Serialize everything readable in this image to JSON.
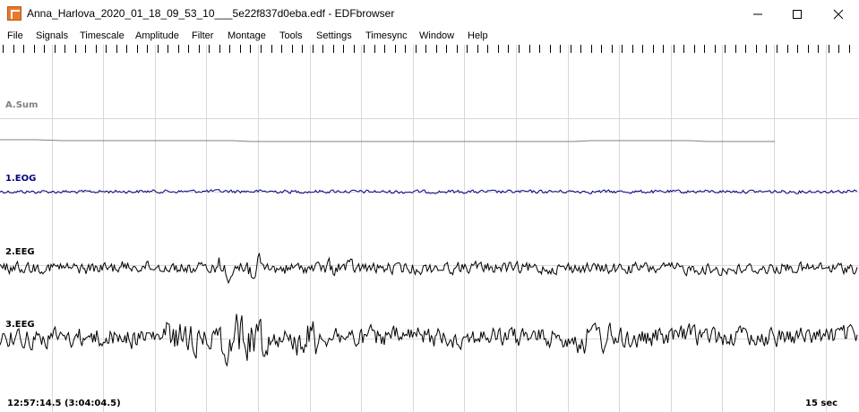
{
  "window": {
    "title": "Anna_Harlova_2020_01_18_09_53_10___5e22f837d0eba.edf - EDFbrowser",
    "minimize_icon": "minimize-icon",
    "maximize_icon": "maximize-icon",
    "close_icon": "close-icon"
  },
  "menu": {
    "items": [
      "File",
      "Signals",
      "Timescale",
      "Amplitude",
      "Filter",
      "Montage",
      "Tools",
      "Settings",
      "Timesync",
      "Window",
      "Help"
    ]
  },
  "signals": [
    {
      "label": "A.Sum",
      "color": "#808080"
    },
    {
      "label": "1.EOG",
      "color": "#000080"
    },
    {
      "label": "2.EEG",
      "color": "#000000"
    },
    {
      "label": "3.EEG",
      "color": "#000000"
    }
  ],
  "status": {
    "time": "12:57:14.5 (3:04:04.5)",
    "timescale": "15 sec"
  },
  "colors": {
    "grid": "#d8d8d8",
    "background": "#ffffff"
  }
}
